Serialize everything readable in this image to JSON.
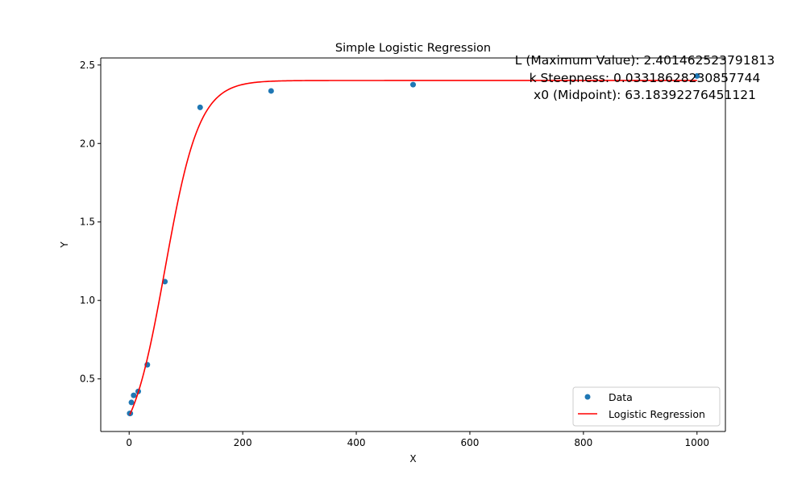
{
  "chart_data": {
    "type": "scatter",
    "title": "Simple Logistic Regression",
    "xlabel": "X",
    "ylabel": "Y",
    "xlim": [
      -50,
      1050
    ],
    "ylim": [
      0.165,
      2.545
    ],
    "xticks": [
      0,
      200,
      400,
      600,
      800,
      1000
    ],
    "xtick_labels": [
      "0",
      "200",
      "400",
      "600",
      "800",
      "1000"
    ],
    "yticks": [
      0.5,
      1.0,
      1.5,
      2.0,
      2.5
    ],
    "ytick_labels": [
      "0.5",
      "1.0",
      "1.5",
      "2.0",
      "2.5"
    ],
    "grid": false,
    "legend_position": "lower-right",
    "series": [
      {
        "name": "Data",
        "kind": "scatter",
        "color": "#1f77b4",
        "points": [
          {
            "x": 1,
            "y": 0.28
          },
          {
            "x": 2,
            "y": 0.28
          },
          {
            "x": 4,
            "y": 0.35
          },
          {
            "x": 8,
            "y": 0.395
          },
          {
            "x": 16,
            "y": 0.42
          },
          {
            "x": 32,
            "y": 0.59
          },
          {
            "x": 63,
            "y": 1.12
          },
          {
            "x": 125,
            "y": 2.23
          },
          {
            "x": 250,
            "y": 2.335
          },
          {
            "x": 500,
            "y": 2.375
          },
          {
            "x": 1000,
            "y": 2.43
          }
        ]
      },
      {
        "name": "Logistic Regression",
        "kind": "line",
        "color": "#ff0000",
        "model": {
          "L": 2.401462523791813,
          "k": 0.03318628230857744,
          "x0": 63.18392276451121
        },
        "x_range": [
          1,
          1000
        ]
      }
    ],
    "annotations": [
      "L (Maximum Value): 2.401462523791813",
      "k Steepness: 0.03318628230857744",
      "x0 (Midpoint): 63.18392276451121"
    ]
  }
}
